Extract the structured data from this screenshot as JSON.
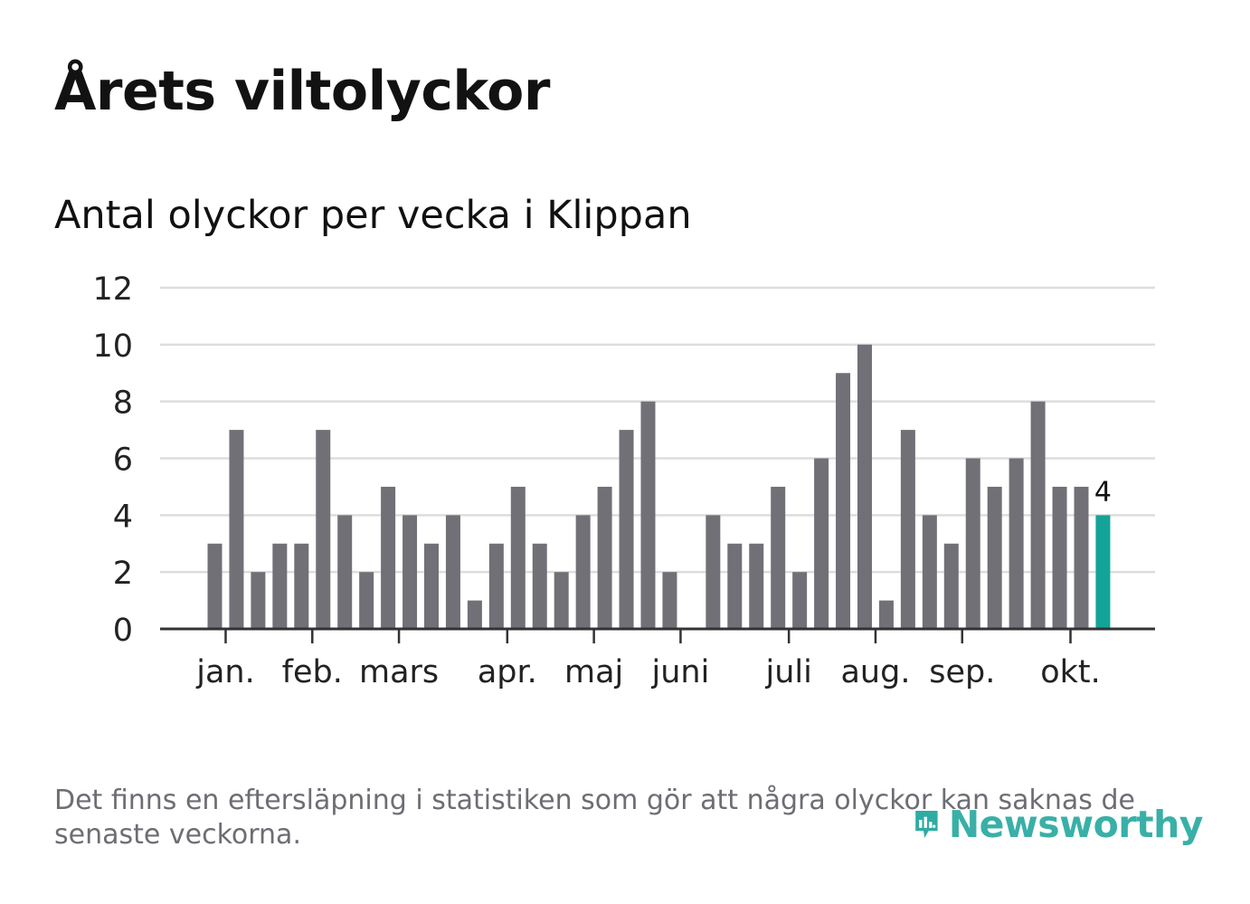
{
  "title": "Årets viltolyckor",
  "subtitle": "Antal olyckor per vecka i Klippan",
  "footnote": "Det finns en eftersläpning i statistiken som gör att några olyckor kan saknas de senaste veckorna.",
  "brand": {
    "name": "Newsworthy",
    "color": "#17a398"
  },
  "colors": {
    "bar": "#717077",
    "highlight": "#14a399",
    "grid": "#dddddd",
    "axis": "#333333",
    "text": "#222222"
  },
  "chart_data": {
    "type": "bar",
    "title": "Antal olyckor per vecka i Klippan",
    "xlabel": "",
    "ylabel": "",
    "ylim": [
      0,
      12
    ],
    "yticks": [
      "0",
      "2",
      "4",
      "6",
      "8",
      "10",
      "12"
    ],
    "weeks": [
      1,
      2,
      3,
      4,
      5,
      6,
      7,
      8,
      9,
      10,
      11,
      12,
      13,
      14,
      15,
      16,
      17,
      18,
      19,
      20,
      21,
      22,
      23,
      24,
      25,
      26,
      27,
      28,
      29,
      30,
      31,
      32,
      33,
      34,
      35,
      36,
      37,
      38,
      39,
      40,
      41,
      42
    ],
    "values": [
      3,
      7,
      2,
      3,
      3,
      7,
      4,
      2,
      5,
      4,
      3,
      4,
      1,
      3,
      5,
      3,
      2,
      4,
      5,
      7,
      8,
      2,
      0,
      4,
      3,
      3,
      5,
      2,
      6,
      9,
      10,
      1,
      7,
      4,
      3,
      6,
      5,
      6,
      8,
      5,
      5,
      4
    ],
    "months": [
      {
        "label": "jan.",
        "week": 1.5
      },
      {
        "label": "feb.",
        "week": 5.5
      },
      {
        "label": "mars",
        "week": 9.5
      },
      {
        "label": "apr.",
        "week": 14.5
      },
      {
        "label": "maj",
        "week": 18.5
      },
      {
        "label": "juni",
        "week": 22.5
      },
      {
        "label": "juli",
        "week": 27.5
      },
      {
        "label": "aug.",
        "week": 31.5
      },
      {
        "label": "sep.",
        "week": 35.5
      },
      {
        "label": "okt.",
        "week": 40.5
      }
    ],
    "highlight_week": 42,
    "highlight_label": "4",
    "grid": true,
    "legend": "none"
  }
}
